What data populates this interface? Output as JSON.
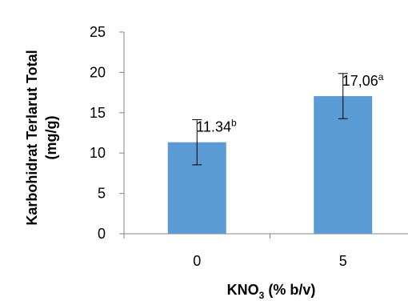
{
  "chart_data": {
    "type": "bar",
    "categories": [
      "0",
      "5"
    ],
    "values": [
      11.34,
      17.06
    ],
    "error": [
      2.8,
      2.8
    ],
    "data_labels": [
      {
        "value": "11.34",
        "superscript": "b"
      },
      {
        "value": "17,06",
        "superscript": "a"
      }
    ],
    "ylabel": {
      "line1": "Karbohidrat Terlarut Total",
      "line2": "(mg/g)"
    },
    "xlabel": {
      "prefix": "KNO",
      "subscript": "3",
      "suffix": " (% b/v)"
    },
    "ylim": [
      0,
      25
    ],
    "yticks": [
      "0",
      "5",
      "10",
      "15",
      "20",
      "25"
    ],
    "grid": false,
    "legend": "none",
    "bar_color": "#5B9BD5"
  }
}
